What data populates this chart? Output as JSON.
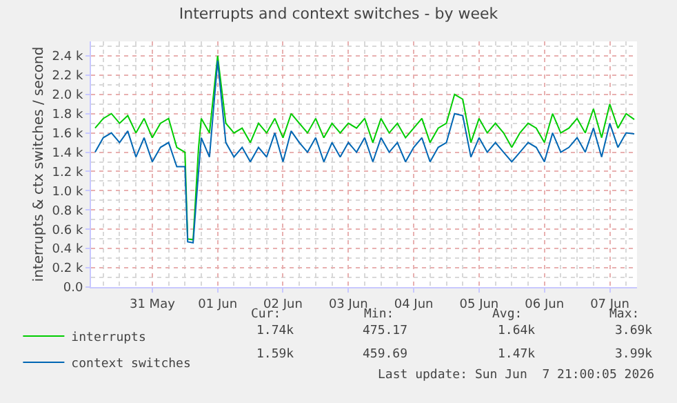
{
  "chart_data": {
    "type": "line",
    "title": "Interrupts and context switches - by week",
    "ylabel": "interrupts & ctx switches / second",
    "x": [
      "2026-05-30T15:00",
      "2026-05-30T18:00",
      "2026-05-30T21:00",
      "2026-05-31T00:00",
      "2026-05-31T03:00",
      "2026-05-31T06:00",
      "2026-05-31T09:00",
      "2026-05-31T12:00",
      "2026-05-31T15:00",
      "2026-05-31T18:00",
      "2026-05-31T21:00",
      "2026-06-01T00:00",
      "2026-06-01T01:00",
      "2026-06-01T03:00",
      "2026-06-01T05:00",
      "2026-06-01T06:00",
      "2026-06-01T09:00",
      "2026-06-01T12:00",
      "2026-06-01T15:00",
      "2026-06-01T18:00",
      "2026-06-01T21:00",
      "2026-06-02T00:00",
      "2026-06-02T03:00",
      "2026-06-02T06:00",
      "2026-06-02T09:00",
      "2026-06-02T12:00",
      "2026-06-02T15:00",
      "2026-06-02T18:00",
      "2026-06-02T21:00",
      "2026-06-03T00:00",
      "2026-06-03T03:00",
      "2026-06-03T06:00",
      "2026-06-03T09:00",
      "2026-06-03T12:00",
      "2026-06-03T15:00",
      "2026-06-03T18:00",
      "2026-06-03T21:00",
      "2026-06-04T00:00",
      "2026-06-04T03:00",
      "2026-06-04T06:00",
      "2026-06-04T09:00",
      "2026-06-04T12:00",
      "2026-06-04T15:00",
      "2026-06-04T18:00",
      "2026-06-04T21:00",
      "2026-06-05T00:00",
      "2026-06-05T03:00",
      "2026-06-05T06:00",
      "2026-06-05T09:00",
      "2026-06-05T12:00",
      "2026-06-05T15:00",
      "2026-06-05T18:00",
      "2026-06-05T21:00",
      "2026-06-06T00:00",
      "2026-06-06T03:00",
      "2026-06-06T06:00",
      "2026-06-06T09:00",
      "2026-06-06T12:00",
      "2026-06-06T15:00",
      "2026-06-06T18:00",
      "2026-06-06T21:00",
      "2026-06-07T00:00",
      "2026-06-07T03:00",
      "2026-06-07T06:00",
      "2026-06-07T09:00",
      "2026-06-07T12:00",
      "2026-06-07T15:00",
      "2026-06-07T18:00",
      "2026-06-07T21:00"
    ],
    "series": [
      {
        "name": "interrupts",
        "color": "#00cc00",
        "values": [
          1650,
          1750,
          1800,
          1700,
          1780,
          1600,
          1750,
          1550,
          1700,
          1750,
          1450,
          1400,
          500,
          490,
          1450,
          1750,
          1600,
          2400,
          1700,
          1600,
          1650,
          1500,
          1700,
          1600,
          1750,
          1550,
          1800,
          1700,
          1600,
          1750,
          1550,
          1700,
          1600,
          1700,
          1650,
          1750,
          1500,
          1750,
          1600,
          1700,
          1550,
          1650,
          1750,
          1500,
          1650,
          1700,
          2000,
          1950,
          1500,
          1750,
          1600,
          1700,
          1600,
          1450,
          1600,
          1700,
          1650,
          1500,
          1800,
          1600,
          1650,
          1750,
          1600,
          1850,
          1550,
          1900,
          1650,
          1800,
          1740
        ]
      },
      {
        "name": "context switches",
        "color": "#0066b3",
        "values": [
          1400,
          1550,
          1600,
          1500,
          1620,
          1350,
          1550,
          1300,
          1450,
          1500,
          1250,
          1250,
          470,
          460,
          1200,
          1550,
          1350,
          2350,
          1500,
          1350,
          1450,
          1300,
          1450,
          1350,
          1600,
          1300,
          1620,
          1500,
          1400,
          1550,
          1300,
          1500,
          1350,
          1500,
          1400,
          1550,
          1300,
          1550,
          1400,
          1500,
          1300,
          1450,
          1550,
          1300,
          1450,
          1500,
          1800,
          1780,
          1350,
          1550,
          1400,
          1500,
          1400,
          1300,
          1400,
          1500,
          1450,
          1300,
          1600,
          1400,
          1450,
          1550,
          1400,
          1650,
          1350,
          1700,
          1450,
          1600,
          1590
        ]
      }
    ],
    "xlim": [
      "2026-05-30T13:30",
      "2026-06-07T22:00"
    ],
    "xticks": [
      {
        "value": "2026-05-31T12:00",
        "label": "31 May"
      },
      {
        "value": "2026-06-01T12:00",
        "label": "01 Jun"
      },
      {
        "value": "2026-06-02T12:00",
        "label": "02 Jun"
      },
      {
        "value": "2026-06-03T12:00",
        "label": "03 Jun"
      },
      {
        "value": "2026-06-04T12:00",
        "label": "04 Jun"
      },
      {
        "value": "2026-06-05T12:00",
        "label": "05 Jun"
      },
      {
        "value": "2026-06-06T12:00",
        "label": "06 Jun"
      },
      {
        "value": "2026-06-07T12:00",
        "label": "07 Jun"
      }
    ],
    "ylim": [
      0,
      2550
    ],
    "yticks": [
      {
        "value": 0,
        "label": "0.0"
      },
      {
        "value": 200,
        "label": "0.2 k"
      },
      {
        "value": 400,
        "label": "0.4 k"
      },
      {
        "value": 600,
        "label": "0.6 k"
      },
      {
        "value": 800,
        "label": "0.8 k"
      },
      {
        "value": 1000,
        "label": "1.0 k"
      },
      {
        "value": 1200,
        "label": "1.2 k"
      },
      {
        "value": 1400,
        "label": "1.4 k"
      },
      {
        "value": 1600,
        "label": "1.6 k"
      },
      {
        "value": 1800,
        "label": "1.8 k"
      },
      {
        "value": 2000,
        "label": "2.0 k"
      },
      {
        "value": 2200,
        "label": "2.2 k"
      },
      {
        "value": 2400,
        "label": "2.4 k"
      }
    ],
    "grid": true,
    "legend": "bottom left",
    "line_style": "solid",
    "annotations": [
      "Cur:",
      "Min:",
      "Avg:",
      "Max:",
      "1.74k",
      "475.17",
      "1.64k",
      "3.69k",
      "1.59k",
      "459.69",
      "1.47k",
      "3.99k",
      "Last update: Sun Jun  7 21:00:05 2026"
    ]
  }
}
